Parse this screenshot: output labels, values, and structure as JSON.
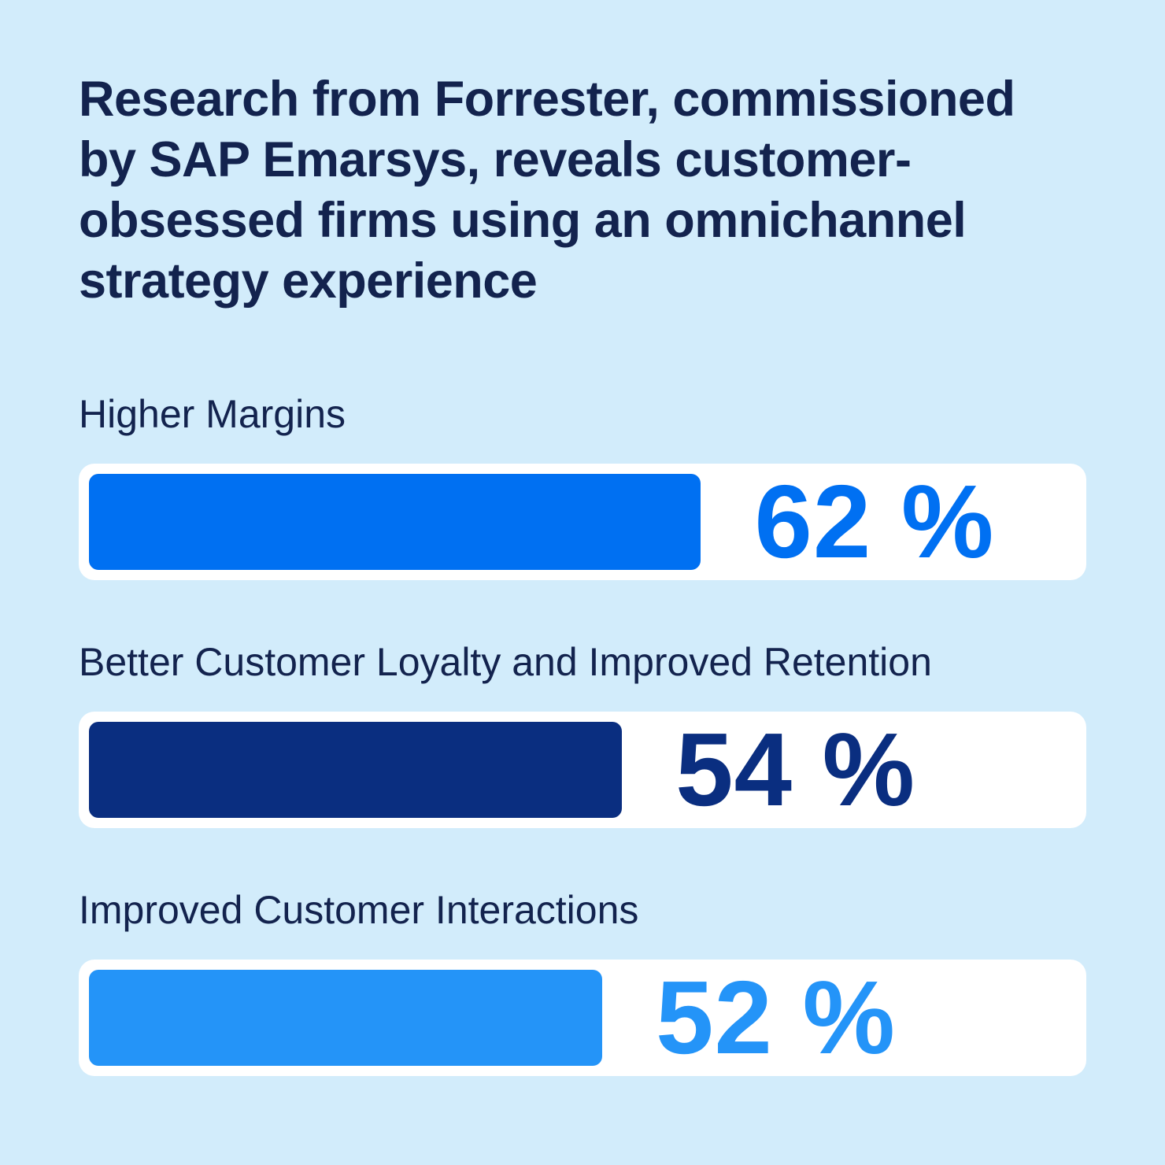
{
  "title": "Research from Forrester, commissioned\nby SAP Emarsys, reveals customer-\nobsessed firms using an omnichannel\nstrategy experience",
  "colors": {
    "background": "#D2ECFB",
    "text": "#13234E",
    "track": "#FFFFFF"
  },
  "chart_data": {
    "type": "bar",
    "orientation": "horizontal",
    "title": "Research from Forrester, commissioned by SAP Emarsys, reveals customer-obsessed firms using an omnichannel strategy experience",
    "categories": [
      "Higher Margins",
      "Better Customer Loyalty and Improved Retention",
      "Improved Customer Interactions"
    ],
    "values": [
      62,
      54,
      52
    ],
    "value_labels": [
      "62 %",
      "54 %",
      "52 %"
    ],
    "bar_colors": [
      "#0070F2",
      "#0A2E80",
      "#2494F8"
    ],
    "xlim": [
      0,
      100
    ],
    "grid": false,
    "legend": false,
    "value_label_position": "right-of-bar"
  }
}
